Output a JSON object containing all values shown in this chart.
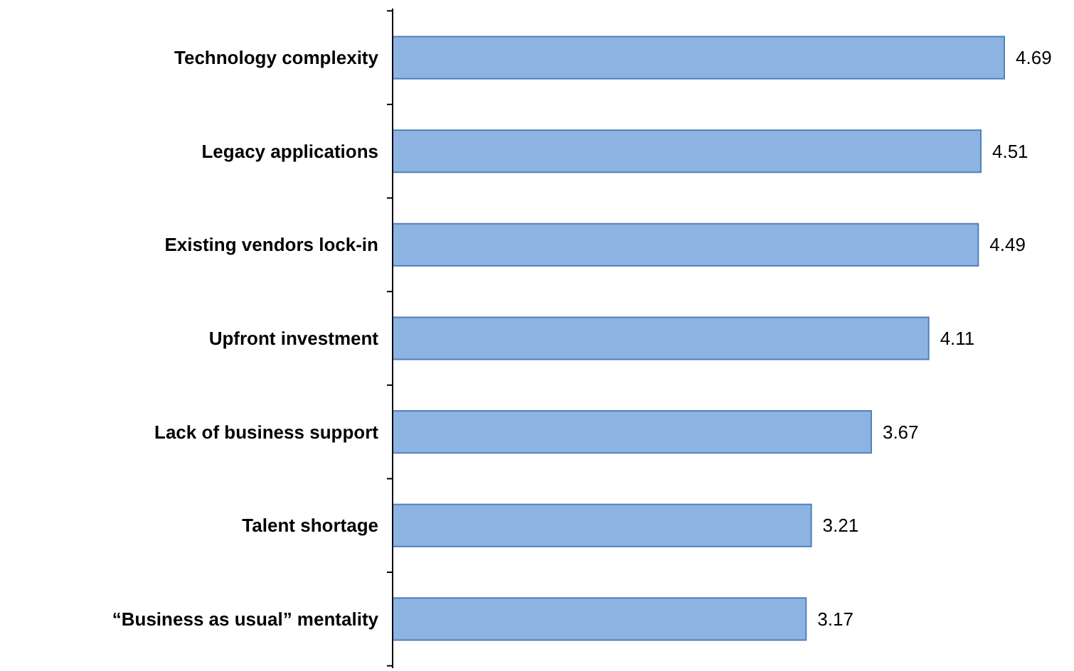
{
  "chart_data": {
    "type": "bar",
    "orientation": "horizontal",
    "categories": [
      "Technology complexity",
      "Legacy applications",
      "Existing vendors lock-in",
      "Upfront investment",
      "Lack of business support",
      "Talent shortage",
      "“Business as usual” mentality"
    ],
    "values": [
      4.69,
      4.51,
      4.49,
      4.11,
      3.67,
      3.21,
      3.17
    ],
    "color": "#8db3e2",
    "data_labels": true,
    "tick_labels": "y"
  }
}
